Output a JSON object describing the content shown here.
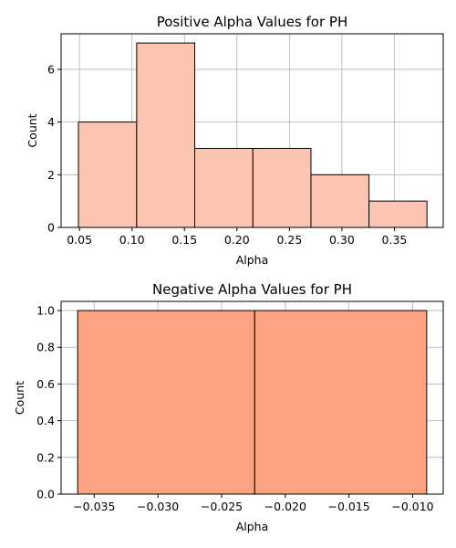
{
  "chart_data": [
    {
      "type": "bar",
      "title": "Positive Alpha Values for PH",
      "xlabel": "Alpha",
      "ylabel": "Count",
      "bar_color": "#fcc5b1",
      "edge_color": "#000000",
      "grid": true,
      "xlim": [
        0.0325,
        0.3965
      ],
      "ylim": [
        0,
        7.35
      ],
      "xticks": [
        0.05,
        0.1,
        0.15,
        0.2,
        0.25,
        0.3,
        0.35
      ],
      "xtick_labels": [
        "0.05",
        "0.10",
        "0.15",
        "0.20",
        "0.25",
        "0.30",
        "0.35"
      ],
      "yticks": [
        0,
        2,
        4,
        6
      ],
      "ytick_labels": [
        "0",
        "2",
        "4",
        "6"
      ],
      "bins": [
        {
          "x0": 0.049,
          "x1": 0.1045,
          "count": 4
        },
        {
          "x0": 0.1045,
          "x1": 0.1598,
          "count": 7
        },
        {
          "x0": 0.1598,
          "x1": 0.2152,
          "count": 3
        },
        {
          "x0": 0.2152,
          "x1": 0.2705,
          "count": 3
        },
        {
          "x0": 0.2705,
          "x1": 0.3258,
          "count": 2
        },
        {
          "x0": 0.3258,
          "x1": 0.381,
          "count": 1
        }
      ]
    },
    {
      "type": "bar",
      "title": "Negative Alpha Values for PH",
      "xlabel": "Alpha",
      "ylabel": "Count",
      "bar_color": "#fba383",
      "edge_color": "#000000",
      "grid": true,
      "xlim": [
        -0.0376,
        -0.0076
      ],
      "ylim": [
        0,
        1.05
      ],
      "xticks": [
        -0.035,
        -0.03,
        -0.025,
        -0.02,
        -0.015,
        -0.01
      ],
      "xtick_labels": [
        "−0.035",
        "−0.030",
        "−0.025",
        "−0.020",
        "−0.015",
        "−0.010"
      ],
      "yticks": [
        0.0,
        0.2,
        0.4,
        0.6,
        0.8,
        1.0
      ],
      "ytick_labels": [
        "0.0",
        "0.2",
        "0.4",
        "0.6",
        "0.8",
        "1.0"
      ],
      "bins": [
        {
          "x0": -0.0363,
          "x1": -0.0224,
          "count": 1
        },
        {
          "x0": -0.0224,
          "x1": -0.0089,
          "count": 1
        }
      ]
    }
  ]
}
